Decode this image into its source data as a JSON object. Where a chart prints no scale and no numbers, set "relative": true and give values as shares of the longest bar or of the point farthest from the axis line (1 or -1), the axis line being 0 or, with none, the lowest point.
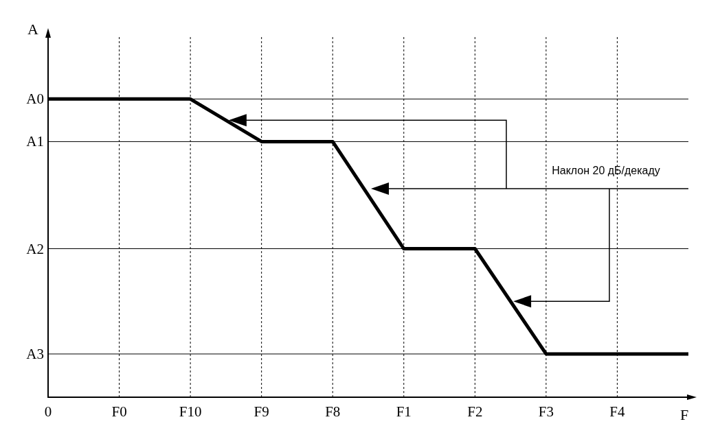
{
  "chart_data": {
    "type": "line",
    "xlabel": "F",
    "ylabel": "A",
    "relative": true,
    "categories": [
      "0",
      "F0",
      "F10",
      "F9",
      "F8",
      "F1",
      "F2",
      "F3",
      "F4",
      null
    ],
    "series": [
      {
        "color": "#000000",
        "values": [
          1,
          1,
          1,
          0.857,
          0.857,
          0.498,
          0.498,
          0.145,
          0.145,
          0.145
        ]
      }
    ],
    "ref_lines": [
      {
        "axis": "y",
        "value": 1,
        "label": "A0"
      },
      {
        "axis": "y",
        "value": 0.857,
        "label": "A1"
      },
      {
        "axis": "y",
        "value": 0.498,
        "label": "A2"
      },
      {
        "axis": "y",
        "value": 0.145,
        "label": "A3"
      }
    ],
    "annotations": [
      "Наклон 20 дБ/декаду"
    ],
    "grid": "x",
    "marker": "none",
    "line_style": "solid"
  }
}
